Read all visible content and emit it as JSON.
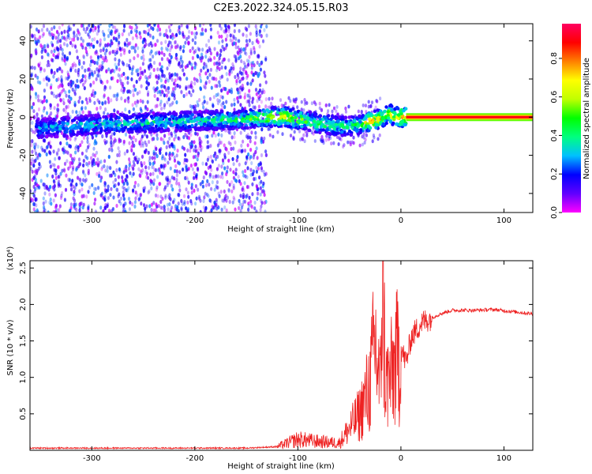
{
  "title": "C2E3.2022.324.05.15.R03",
  "chart_data": [
    {
      "type": "heatmap",
      "xlabel": "Height of straight line (km)",
      "ylabel": "Frequency (Hz)",
      "xlim": [
        -360,
        128
      ],
      "ylim": [
        -50,
        49
      ],
      "xticks": [
        -300,
        -200,
        -100,
        0,
        100
      ],
      "yticks": [
        -40,
        -20,
        0,
        20,
        40
      ],
      "colorbar": {
        "label": "Normalized spectral amplitude",
        "range": [
          0,
          0.98
        ],
        "ticks": [
          0.0,
          0.2,
          0.4,
          0.6,
          0.8
        ],
        "colormap": [
          "#ff00ff",
          "#6000ff",
          "#0000ff",
          "#00c0ff",
          "#00ff80",
          "#00ff00",
          "#c0ff00",
          "#ffff00",
          "#ff8000",
          "#ff0000",
          "#ff0060"
        ]
      },
      "ridge": {
        "x": [
          -350,
          -300,
          -250,
          -200,
          -150,
          -130,
          -110,
          -90,
          -70,
          -50,
          -40,
          -30,
          -20,
          -12,
          -5,
          0,
          50,
          128
        ],
        "frequency_hz": [
          -6,
          -4,
          -3,
          -2,
          -1,
          0,
          0,
          -2,
          -4,
          -5,
          -4,
          -2,
          -1,
          2,
          0,
          0,
          0,
          0
        ],
        "amplitude": [
          0.35,
          0.4,
          0.42,
          0.45,
          0.5,
          0.7,
          0.75,
          0.55,
          0.5,
          0.45,
          0.5,
          0.8,
          0.85,
          0.7,
          0.8,
          0.9,
          0.92,
          0.92
        ]
      }
    },
    {
      "type": "line",
      "xlabel": "Height of straight line (km)",
      "ylabel": "SNR (10 * v/v)",
      "ylabel_scale": "(x10⁴)",
      "xlim": [
        -360,
        128
      ],
      "ylim": [
        0,
        2.6
      ],
      "xticks": [
        -300,
        -200,
        -100,
        0,
        100
      ],
      "yticks": [
        0.5,
        1.0,
        1.5,
        2.0,
        2.5
      ],
      "series": [
        {
          "color": "#ee2222",
          "x": [
            -360,
            -300,
            -200,
            -150,
            -120,
            -100,
            -80,
            -60,
            -50,
            -40,
            -30,
            -25,
            -20,
            -18,
            -15,
            -10,
            0,
            5,
            10,
            20,
            30,
            40,
            50,
            70,
            90,
            110,
            128
          ],
          "values": [
            0.03,
            0.03,
            0.03,
            0.03,
            0.05,
            0.15,
            0.12,
            0.1,
            0.3,
            0.5,
            0.9,
            1.5,
            0.8,
            2.6,
            0.9,
            1.0,
            1.4,
            1.2,
            1.55,
            1.75,
            1.82,
            1.88,
            1.92,
            1.92,
            1.93,
            1.9,
            1.87
          ]
        }
      ]
    }
  ]
}
